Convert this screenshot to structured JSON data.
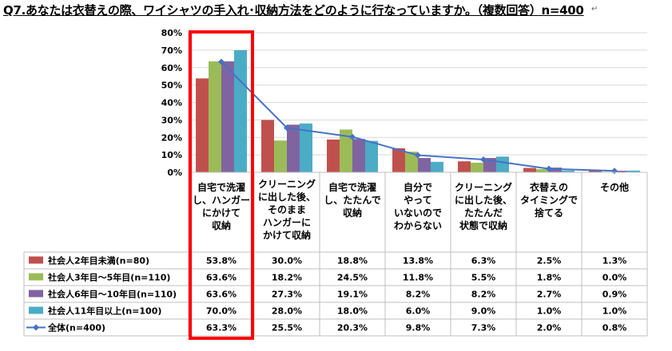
{
  "title": "Q7.あなたは衣替えの際、ワイシャツの手入れ･収納方法をどのように行なっていますか。（複数回答）n=400",
  "chart_data": {
    "type": "bar",
    "title": "Q7.あなたは衣替えの際、ワイシャツの手入れ･収納方法をどのように行なっていますか。（複数回答）n=400",
    "ylim": [
      0,
      80
    ],
    "yticks": [
      "0%",
      "10%",
      "20%",
      "30%",
      "40%",
      "50%",
      "60%",
      "70%",
      "80%"
    ],
    "grid": true,
    "highlight_category_index": 0,
    "categories": [
      [
        "自宅で洗濯",
        "し、ハンガー",
        "にかけて",
        "収納"
      ],
      [
        "クリーニング",
        "に出した後、",
        "そのまま",
        "ハンガーに",
        "かけて収納"
      ],
      [
        "自宅で洗濯",
        "し、たたんで",
        "収納"
      ],
      [
        "自分で",
        "やって",
        "いないので",
        "わからない"
      ],
      [
        "クリーニング",
        "に出した後、",
        "たたんだ",
        "状態で収納"
      ],
      [
        "衣替えの",
        "タイミングで",
        "捨てる"
      ],
      [
        "その他"
      ]
    ],
    "series": [
      {
        "name": "社会人2年目未満(n=80)",
        "kind": "bar",
        "color": "#C0504D",
        "values": [
          53.8,
          30.0,
          18.8,
          13.8,
          6.3,
          2.5,
          1.3
        ],
        "labels": [
          "53.8%",
          "30.0%",
          "18.8%",
          "13.8%",
          "6.3%",
          "2.5%",
          "1.3%"
        ]
      },
      {
        "name": "社会人3年目～5年目(n=110)",
        "kind": "bar",
        "color": "#9BBB59",
        "values": [
          63.6,
          18.2,
          24.5,
          11.8,
          5.5,
          1.8,
          0.0
        ],
        "labels": [
          "63.6%",
          "18.2%",
          "24.5%",
          "11.8%",
          "5.5%",
          "1.8%",
          "0.0%"
        ]
      },
      {
        "name": "社会人6年目～10年目(n=110)",
        "kind": "bar",
        "color": "#8064A2",
        "values": [
          63.6,
          27.3,
          19.1,
          8.2,
          8.2,
          2.7,
          0.9
        ],
        "labels": [
          "63.6%",
          "27.3%",
          "19.1%",
          "8.2%",
          "8.2%",
          "2.7%",
          "0.9%"
        ]
      },
      {
        "name": "社会人11年目以上(n=100)",
        "kind": "bar",
        "color": "#4BACC6",
        "values": [
          70.0,
          28.0,
          18.0,
          6.0,
          9.0,
          1.0,
          1.0
        ],
        "labels": [
          "70.0%",
          "28.0%",
          "18.0%",
          "6.0%",
          "9.0%",
          "1.0%",
          "1.0%"
        ]
      },
      {
        "name": "全体(n=400)",
        "kind": "line",
        "color": "#4472C4",
        "values": [
          63.3,
          25.5,
          20.3,
          9.8,
          7.3,
          2.0,
          0.8
        ],
        "labels": [
          "63.3%",
          "25.5%",
          "20.3%",
          "9.8%",
          "7.3%",
          "2.0%",
          "0.8%"
        ]
      }
    ],
    "colors": {
      "grid": "#D9D9D9",
      "border": "#BFBFBF",
      "highlight": "#FF0000"
    }
  }
}
